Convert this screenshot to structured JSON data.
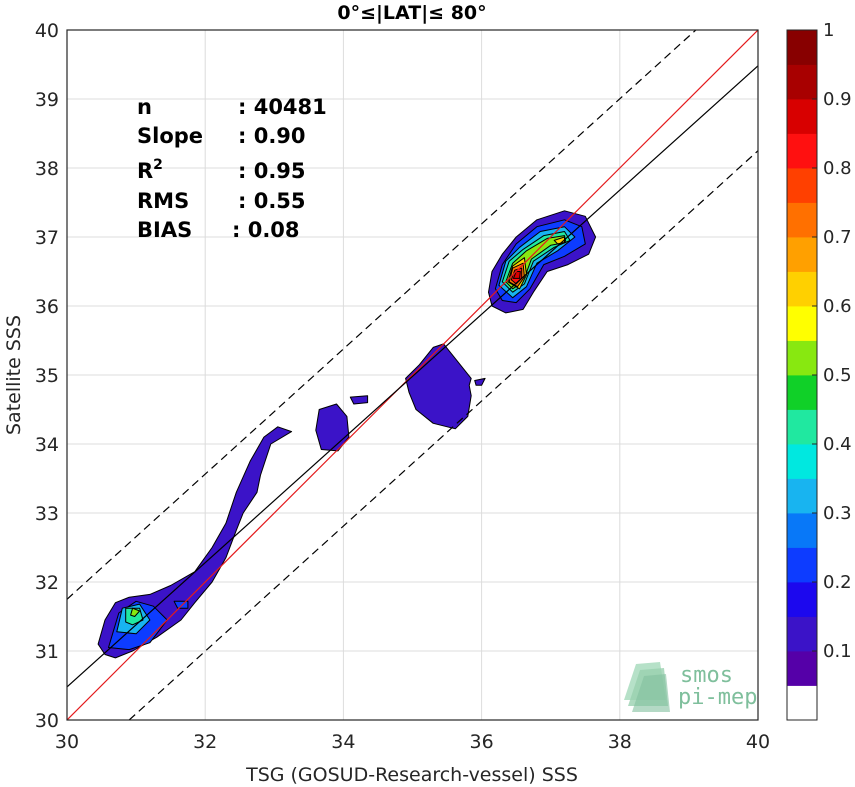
{
  "chart_data": {
    "type": "heatmap",
    "title": "0°≤|LAT|≤ 80°",
    "xlabel": "TSG (GOSUD-Research-vessel) SSS",
    "ylabel": "Satellite SSS",
    "xlim": [
      30,
      40
    ],
    "ylim": [
      30,
      40
    ],
    "xticks": [
      "30",
      "32",
      "34",
      "36",
      "38",
      "40"
    ],
    "yticks": [
      "30",
      "31",
      "32",
      "33",
      "34",
      "35",
      "36",
      "37",
      "38",
      "39",
      "40"
    ],
    "grid": true,
    "stats": [
      {
        "name": "n",
        "value": ": 40481"
      },
      {
        "name": "Slope",
        "value": ": 0.90"
      },
      {
        "name": "R",
        "sup": "2",
        "value": ": 0.95"
      },
      {
        "name": "RMS",
        "value": ": 0.55"
      },
      {
        "name": "BIAS",
        "value": ": 0.08"
      }
    ],
    "lines": [
      {
        "kind": "identity",
        "color": "#e41a1c",
        "style": "solid",
        "points": [
          [
            30,
            30
          ],
          [
            40,
            40
          ]
        ]
      },
      {
        "kind": "regression",
        "color": "#000000",
        "style": "solid",
        "points": [
          [
            30,
            30.48
          ],
          [
            40,
            39.48
          ]
        ]
      },
      {
        "kind": "upper-bound",
        "color": "#000000",
        "style": "dashed",
        "points": [
          [
            30,
            31.75
          ],
          [
            39.1,
            40
          ]
        ]
      },
      {
        "kind": "lower-bound",
        "color": "#000000",
        "style": "dashed",
        "points": [
          [
            30.9,
            30
          ],
          [
            40,
            38.25
          ]
        ]
      }
    ],
    "density_regions": [
      {
        "level": 0.1,
        "points": [
          [
            30.55,
            30.95
          ],
          [
            30.45,
            31.1
          ],
          [
            30.55,
            31.45
          ],
          [
            30.7,
            31.7
          ],
          [
            30.9,
            31.78
          ],
          [
            31.2,
            31.82
          ],
          [
            31.5,
            31.95
          ],
          [
            31.85,
            32.15
          ],
          [
            32.1,
            32.5
          ],
          [
            32.3,
            32.85
          ],
          [
            32.45,
            33.3
          ],
          [
            32.65,
            33.75
          ],
          [
            32.85,
            34.1
          ],
          [
            33.05,
            34.25
          ],
          [
            33.25,
            34.18
          ],
          [
            32.95,
            34.0
          ],
          [
            32.8,
            33.55
          ],
          [
            32.75,
            33.3
          ],
          [
            32.55,
            33.0
          ],
          [
            32.45,
            32.75
          ],
          [
            32.3,
            32.35
          ],
          [
            32.1,
            32.0
          ],
          [
            31.85,
            31.7
          ],
          [
            31.65,
            31.45
          ],
          [
            31.3,
            31.2
          ],
          [
            30.95,
            31.0
          ],
          [
            30.7,
            30.9
          ]
        ]
      },
      {
        "level": 0.1,
        "points": [
          [
            33.65,
            34.5
          ],
          [
            33.9,
            34.58
          ],
          [
            34.05,
            34.4
          ],
          [
            34.08,
            34.1
          ],
          [
            33.92,
            33.9
          ],
          [
            33.68,
            33.92
          ],
          [
            33.6,
            34.2
          ]
        ]
      },
      {
        "level": 0.1,
        "points": [
          [
            34.1,
            34.68
          ],
          [
            34.35,
            34.7
          ],
          [
            34.35,
            34.6
          ],
          [
            34.15,
            34.58
          ]
        ]
      },
      {
        "level": 0.1,
        "points": [
          [
            34.9,
            34.95
          ],
          [
            35.1,
            35.15
          ],
          [
            35.3,
            35.4
          ],
          [
            35.45,
            35.45
          ],
          [
            35.65,
            35.2
          ],
          [
            35.85,
            34.95
          ],
          [
            35.82,
            34.85
          ],
          [
            35.85,
            34.7
          ],
          [
            35.8,
            34.4
          ],
          [
            35.62,
            34.22
          ],
          [
            35.3,
            34.3
          ],
          [
            35.05,
            34.5
          ],
          [
            34.95,
            34.75
          ]
        ]
      },
      {
        "level": 0.1,
        "points": [
          [
            35.9,
            34.92
          ],
          [
            36.05,
            34.95
          ],
          [
            36.0,
            34.85
          ],
          [
            35.92,
            34.85
          ]
        ]
      },
      {
        "level": 0.1,
        "points": [
          [
            36.1,
            36.2
          ],
          [
            36.15,
            36.5
          ],
          [
            36.3,
            36.75
          ],
          [
            36.5,
            37.0
          ],
          [
            36.8,
            37.25
          ],
          [
            37.2,
            37.38
          ],
          [
            37.5,
            37.3
          ],
          [
            37.65,
            37.0
          ],
          [
            37.55,
            36.75
          ],
          [
            37.25,
            36.6
          ],
          [
            36.95,
            36.5
          ],
          [
            36.75,
            36.2
          ],
          [
            36.6,
            35.95
          ],
          [
            36.35,
            35.9
          ],
          [
            36.15,
            36.0
          ]
        ]
      },
      {
        "level": 0.2,
        "points": [
          [
            30.6,
            31.05
          ],
          [
            30.75,
            31.55
          ],
          [
            31.0,
            31.72
          ],
          [
            31.25,
            31.65
          ],
          [
            31.45,
            31.45
          ],
          [
            31.2,
            31.12
          ],
          [
            30.9,
            31.02
          ]
        ]
      },
      {
        "level": 0.2,
        "points": [
          [
            31.55,
            31.72
          ],
          [
            31.75,
            31.72
          ],
          [
            31.75,
            31.62
          ],
          [
            31.6,
            31.62
          ]
        ]
      },
      {
        "level": 0.2,
        "points": [
          [
            36.2,
            36.25
          ],
          [
            36.3,
            36.6
          ],
          [
            36.5,
            36.9
          ],
          [
            36.8,
            37.15
          ],
          [
            37.2,
            37.25
          ],
          [
            37.45,
            37.15
          ],
          [
            37.5,
            36.9
          ],
          [
            37.2,
            36.72
          ],
          [
            36.9,
            36.6
          ],
          [
            36.7,
            36.25
          ],
          [
            36.5,
            36.05
          ],
          [
            36.3,
            36.08
          ]
        ]
      },
      {
        "level": 0.3,
        "points": [
          [
            30.72,
            31.28
          ],
          [
            30.8,
            31.62
          ],
          [
            31.05,
            31.68
          ],
          [
            31.2,
            31.45
          ],
          [
            31.0,
            31.25
          ]
        ]
      },
      {
        "level": 0.3,
        "points": [
          [
            36.25,
            36.3
          ],
          [
            36.35,
            36.65
          ],
          [
            36.55,
            36.85
          ],
          [
            36.85,
            37.08
          ],
          [
            37.2,
            37.15
          ],
          [
            37.35,
            37.0
          ],
          [
            37.1,
            36.8
          ],
          [
            36.8,
            36.62
          ],
          [
            36.65,
            36.28
          ],
          [
            36.45,
            36.12
          ]
        ]
      },
      {
        "level": 0.4,
        "points": [
          [
            30.85,
            31.42
          ],
          [
            30.85,
            31.62
          ],
          [
            31.05,
            31.62
          ],
          [
            31.1,
            31.45
          ],
          [
            30.95,
            31.38
          ]
        ]
      },
      {
        "level": 0.4,
        "points": [
          [
            36.3,
            36.35
          ],
          [
            36.4,
            36.65
          ],
          [
            36.6,
            36.82
          ],
          [
            36.9,
            37.02
          ],
          [
            37.2,
            37.08
          ],
          [
            37.28,
            36.95
          ],
          [
            37.05,
            36.85
          ],
          [
            36.75,
            36.65
          ],
          [
            36.62,
            36.32
          ],
          [
            36.45,
            36.2
          ]
        ]
      },
      {
        "level": 0.5,
        "points": [
          [
            30.92,
            31.52
          ],
          [
            30.95,
            31.62
          ],
          [
            31.05,
            31.58
          ],
          [
            30.98,
            31.5
          ]
        ]
      },
      {
        "level": 0.5,
        "points": [
          [
            36.35,
            36.35
          ],
          [
            36.45,
            36.62
          ],
          [
            36.65,
            36.8
          ],
          [
            36.95,
            36.98
          ],
          [
            37.2,
            37.02
          ],
          [
            37.22,
            36.92
          ],
          [
            37.0,
            36.88
          ],
          [
            36.72,
            36.68
          ],
          [
            36.6,
            36.35
          ],
          [
            36.45,
            36.25
          ]
        ]
      },
      {
        "level": 0.6,
        "points": [
          [
            36.38,
            36.35
          ],
          [
            36.45,
            36.58
          ],
          [
            36.62,
            36.7
          ],
          [
            36.65,
            36.45
          ],
          [
            36.55,
            36.25
          ]
        ]
      },
      {
        "level": 0.6,
        "points": [
          [
            37.05,
            36.95
          ],
          [
            37.2,
            37.0
          ],
          [
            37.2,
            36.92
          ],
          [
            37.1,
            36.9
          ]
        ]
      },
      {
        "level": 0.7,
        "points": [
          [
            36.4,
            36.35
          ],
          [
            36.45,
            36.55
          ],
          [
            36.6,
            36.62
          ],
          [
            36.62,
            36.42
          ],
          [
            36.52,
            36.28
          ]
        ]
      },
      {
        "level": 0.8,
        "points": [
          [
            36.43,
            36.38
          ],
          [
            36.48,
            36.52
          ],
          [
            36.58,
            36.55
          ],
          [
            36.58,
            36.4
          ],
          [
            36.5,
            36.32
          ]
        ]
      },
      {
        "level": 0.85,
        "points": [
          [
            36.46,
            36.4
          ],
          [
            36.5,
            36.5
          ],
          [
            36.56,
            36.5
          ],
          [
            36.55,
            36.4
          ]
        ]
      }
    ],
    "colorbar": {
      "min": 0,
      "max": 1,
      "ticks": [
        "0.1",
        "0.2",
        "0.3",
        "0.4",
        "0.5",
        "0.6",
        "0.7",
        "0.8",
        "0.9",
        "1"
      ],
      "colors": [
        "#ffffff",
        "#5500a8",
        "#3b13c8",
        "#1c08ee",
        "#0d3cff",
        "#0878f8",
        "#18b4f0",
        "#00e8e0",
        "#20e8a0",
        "#10d028",
        "#88e810",
        "#ffff00",
        "#ffd000",
        "#ffa000",
        "#ff7000",
        "#ff4000",
        "#ff1010",
        "#d80000",
        "#a80000",
        "#880000"
      ]
    }
  },
  "watermark": {
    "line1": "smos",
    "line2": "pi-mep"
  }
}
